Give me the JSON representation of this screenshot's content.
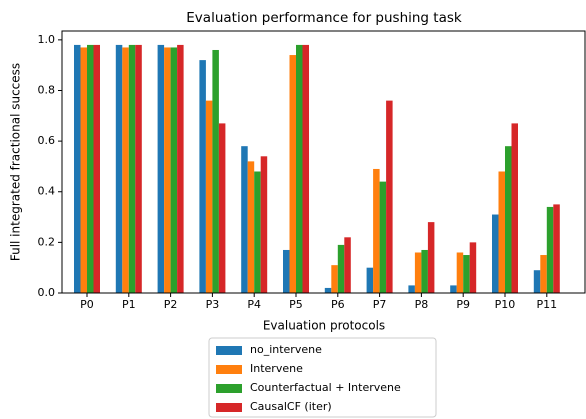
{
  "chart_data": {
    "type": "bar",
    "title": "Evaluation performance for pushing task",
    "x_label": "Evaluation protocols",
    "y_label": "Full integrated fractional success",
    "categories": [
      "P0",
      "P1",
      "P2",
      "P3",
      "P4",
      "P5",
      "P6",
      "P7",
      "P8",
      "P9",
      "P10",
      "P11"
    ],
    "series": [
      {
        "name": "no_intervene",
        "color": "#1f77b4",
        "values": [
          0.98,
          0.98,
          0.98,
          0.92,
          0.58,
          0.17,
          0.02,
          0.1,
          0.03,
          0.03,
          0.31,
          0.09
        ]
      },
      {
        "name": "Intervene",
        "color": "#ff7f0e",
        "values": [
          0.97,
          0.97,
          0.97,
          0.76,
          0.52,
          0.94,
          0.11,
          0.49,
          0.16,
          0.16,
          0.48,
          0.15
        ]
      },
      {
        "name": "Counterfactual + Intervene",
        "color": "#2ca02c",
        "values": [
          0.98,
          0.98,
          0.97,
          0.96,
          0.48,
          0.98,
          0.19,
          0.44,
          0.17,
          0.15,
          0.58,
          0.34
        ]
      },
      {
        "name": "CausalCF (iter)",
        "color": "#d62728",
        "values": [
          0.98,
          0.98,
          0.98,
          0.67,
          0.54,
          0.98,
          0.22,
          0.76,
          0.28,
          0.2,
          0.67,
          0.35
        ]
      }
    ],
    "ylim": [
      0,
      1.035
    ],
    "yticks": [
      {
        "value": 0,
        "label": "0.0"
      },
      0.2,
      0.4,
      0.6,
      0.8,
      {
        "value": 1,
        "label": "1.0"
      }
    ],
    "legend": "below"
  }
}
